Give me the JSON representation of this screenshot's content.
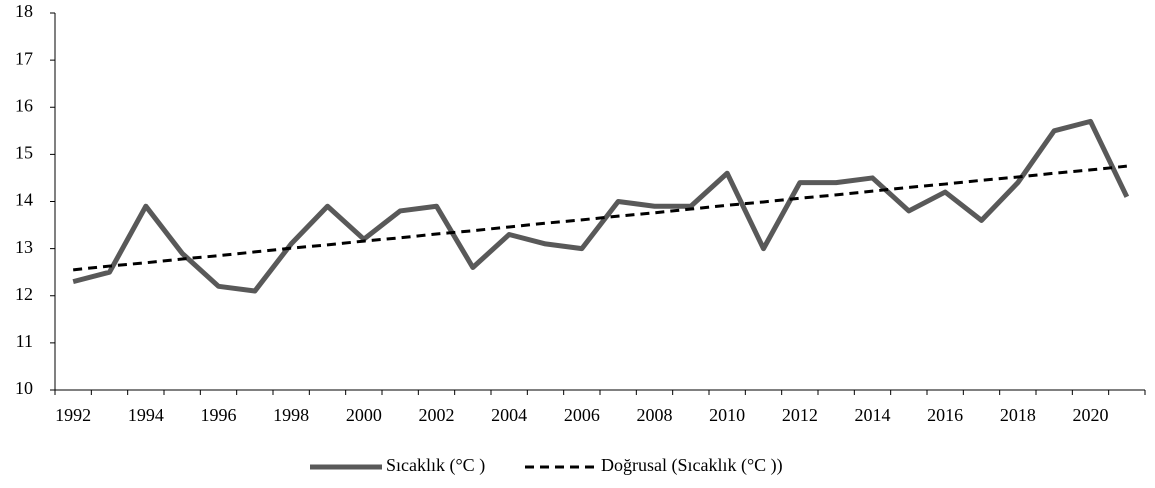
{
  "chart_data": {
    "type": "line",
    "categories": [
      "1992",
      null,
      "1994",
      null,
      "1996",
      null,
      "1998",
      null,
      "2000",
      null,
      "2002",
      null,
      "2004",
      null,
      "2006",
      null,
      "2008",
      null,
      "2010",
      null,
      "2012",
      null,
      "2014",
      null,
      "2016",
      null,
      "2018",
      null,
      "2020",
      null
    ],
    "series": [
      {
        "name": "Sıcaklık (°C )",
        "color": "#595959",
        "style": "solid",
        "values": [
          12.3,
          12.5,
          13.9,
          12.9,
          12.2,
          12.1,
          13.1,
          13.9,
          13.2,
          13.8,
          13.9,
          12.6,
          13.3,
          13.1,
          13.0,
          14.0,
          13.9,
          13.9,
          14.6,
          13.0,
          14.4,
          14.4,
          14.5,
          13.8,
          14.2,
          13.6,
          14.4,
          15.5,
          15.7,
          14.1
        ]
      },
      {
        "name": "Doğrusal (Sıcaklık (°C ))",
        "color": "#000000",
        "style": "dashed",
        "values": [
          12.55,
          12.63,
          12.7,
          12.78,
          12.85,
          12.93,
          13.01,
          13.08,
          13.16,
          13.23,
          13.31,
          13.38,
          13.46,
          13.54,
          13.61,
          13.69,
          13.76,
          13.84,
          13.92,
          13.99,
          14.07,
          14.14,
          14.22,
          14.3,
          14.37,
          14.45,
          14.52,
          14.6,
          14.67,
          14.75
        ]
      }
    ],
    "ylim": [
      10,
      18
    ],
    "yticks": [
      10,
      11,
      12,
      13,
      14,
      15,
      16,
      17,
      18
    ],
    "legend": "bottom"
  }
}
